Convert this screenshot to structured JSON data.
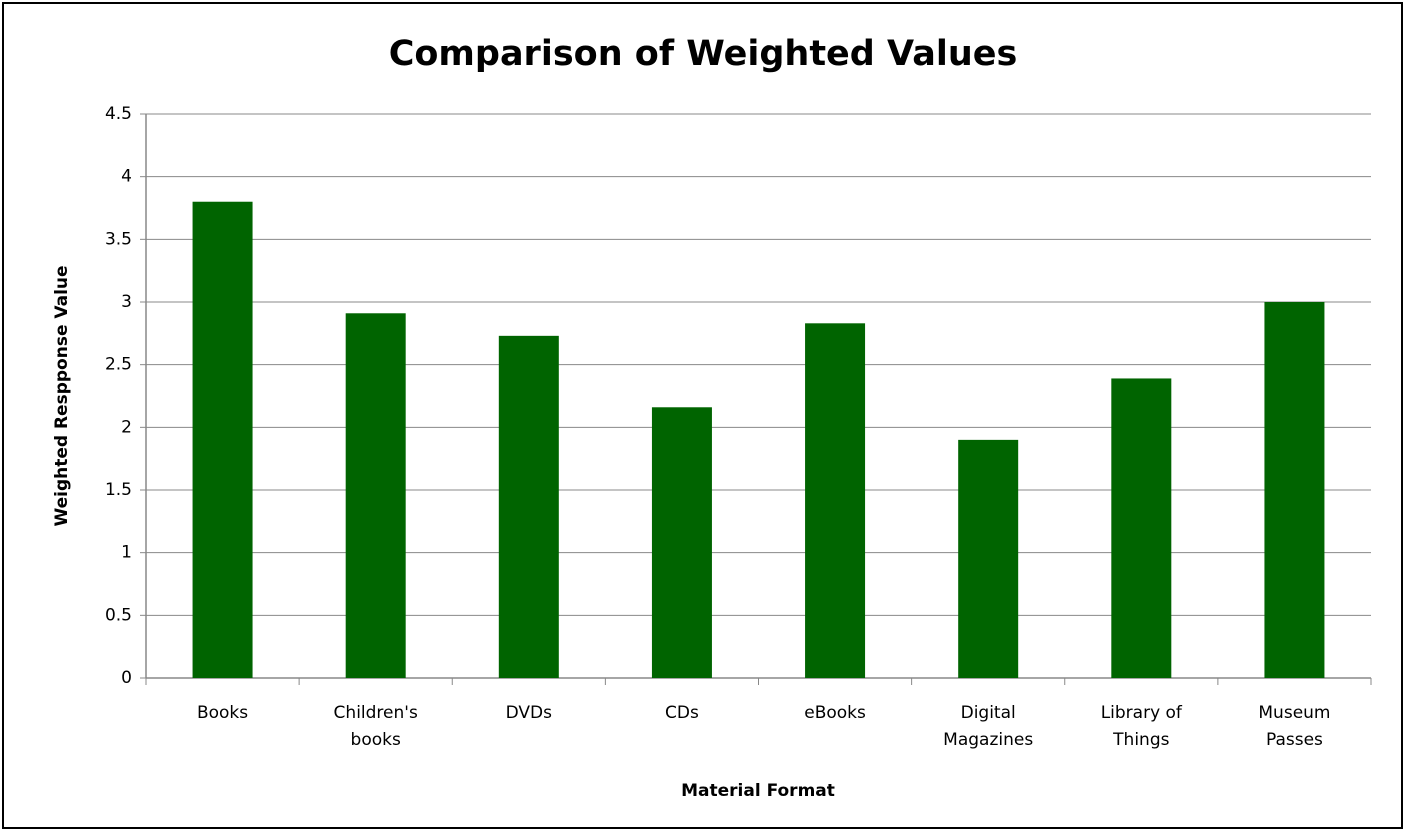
{
  "chart_data": {
    "type": "bar",
    "title": "Comparison of Weighted Values",
    "x_label": "Material Format",
    "y_label": "Weighted Respponse Value",
    "categories": [
      "Books",
      "Children's books",
      "DVDs",
      "CDs",
      "eBooks",
      "Digital Magazines",
      "Library of Things",
      "Museum Passes"
    ],
    "values": [
      3.8,
      2.91,
      2.73,
      2.16,
      2.83,
      1.9,
      2.39,
      3.0
    ],
    "color": "#006400",
    "ylim": [
      0,
      4.5
    ],
    "yticks": [
      0,
      0.5,
      1,
      1.5,
      2,
      2.5,
      3,
      3.5,
      4,
      4.5
    ],
    "grid": true
  }
}
